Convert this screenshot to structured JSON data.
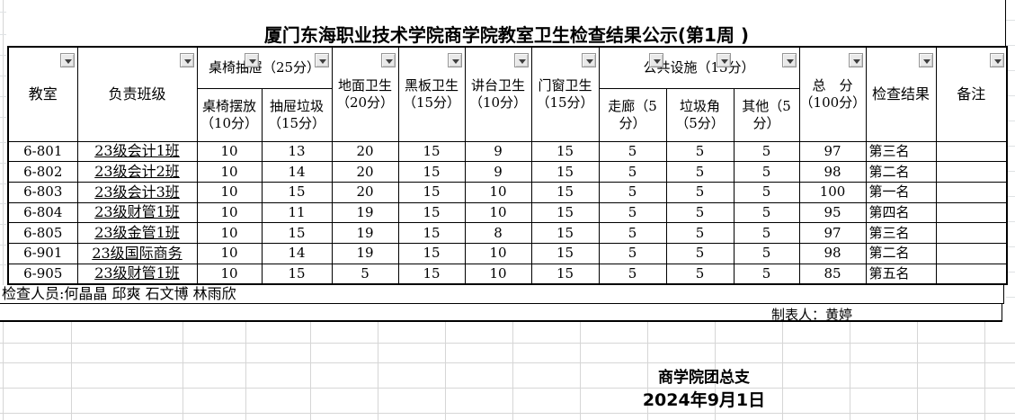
{
  "title": "厦门东海职业技术学院商学院教室卫生检查结果公示(第1周 )",
  "table": {
    "header": {
      "classroom": "教室",
      "class_in_charge": "负责班级",
      "desk_group": "桌椅抽屉（25分）",
      "desk_arrange": "桌椅摆放\n（10分）",
      "drawer_trash": "抽屉垃圾\n（15分）",
      "floor": "地面卫生\n（20分）",
      "blackboard": "黑板卫生\n（15分）",
      "podium": "讲台卫生\n（10分）",
      "doors_windows": "门窗卫生\n（15分）",
      "public_group": "公共设施（15分）",
      "corridor": "走廊（5\n分）",
      "trash_corner": "垃圾角\n（5分）",
      "other": "其他（5\n分）",
      "total": "总　分\n（100分）",
      "result": "检查结果",
      "remark": "备注"
    },
    "rows": [
      [
        "6-801",
        "23级会计1班",
        "10",
        "13",
        "20",
        "15",
        "9",
        "15",
        "5",
        "5",
        "5",
        "97",
        "第三名",
        ""
      ],
      [
        "6-802",
        "23级会计2班",
        "10",
        "14",
        "20",
        "15",
        "9",
        "15",
        "5",
        "5",
        "5",
        "98",
        "第二名",
        ""
      ],
      [
        "6-803",
        "23级会计3班",
        "10",
        "15",
        "20",
        "15",
        "10",
        "15",
        "5",
        "5",
        "5",
        "100",
        "第一名",
        ""
      ],
      [
        "6-804",
        "23级财管1班",
        "10",
        "11",
        "19",
        "15",
        "10",
        "15",
        "5",
        "5",
        "5",
        "95",
        "第四名",
        ""
      ],
      [
        "6-805",
        "23级金管1班",
        "10",
        "15",
        "19",
        "15",
        "8",
        "15",
        "5",
        "5",
        "5",
        "97",
        "第三名",
        ""
      ],
      [
        "6-901",
        "23级国际商务",
        "10",
        "14",
        "19",
        "15",
        "10",
        "15",
        "5",
        "5",
        "5",
        "98",
        "第二名",
        ""
      ],
      [
        "6-905",
        "23级财管1班",
        "10",
        "15",
        "5",
        "15",
        "10",
        "15",
        "5",
        "5",
        "5",
        "85",
        "第五名",
        ""
      ]
    ]
  },
  "footer": {
    "inspectors": "检查人员:何晶晶 邱爽 石文博 林雨欣",
    "maker": "制表人：黄婷",
    "org": "商学院团总支",
    "date": "2024年9月1日"
  },
  "icons": {
    "filter_button": "chevron-down-icon"
  },
  "colors": {
    "table_border": "#000000",
    "gridline": "#d6d6d6",
    "filter_button_bg": "#e9e9e9",
    "filter_button_border": "#969696",
    "text": "#000000",
    "background": "#ffffff"
  }
}
